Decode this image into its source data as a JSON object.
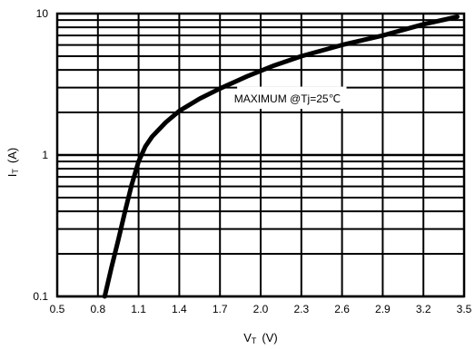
{
  "chart_data": {
    "type": "line",
    "xscale": "linear",
    "yscale": "log",
    "xlim": [
      0.5,
      3.5
    ],
    "ylim": [
      0.1,
      10
    ],
    "grid": true,
    "x_ticks": [
      "0.5",
      "0.8",
      "1.1",
      "1.4",
      "1.7",
      "2.0",
      "2.3",
      "2.6",
      "2.9",
      "3.2",
      "3.5"
    ],
    "y_ticks": [
      "0.1",
      "1",
      "10"
    ],
    "xlabel": {
      "main": "V",
      "sub": "T",
      "unit": "(V)"
    },
    "ylabel": {
      "main": "I",
      "sub": "T",
      "unit": "(A)"
    },
    "annotation": "MAXIMUM @Tj=25℃",
    "series": [
      {
        "x": [
          0.85,
          0.9,
          0.95,
          1.0,
          1.05,
          1.1,
          1.15,
          1.2,
          1.3,
          1.4,
          1.55,
          1.7,
          1.9,
          2.1,
          2.3,
          2.6,
          2.9,
          3.2,
          3.45
        ],
        "y": [
          0.1,
          0.16,
          0.25,
          0.4,
          0.62,
          0.9,
          1.15,
          1.35,
          1.7,
          2.05,
          2.5,
          2.95,
          3.6,
          4.3,
          5.0,
          6.0,
          7.0,
          8.4,
          9.5
        ]
      }
    ]
  }
}
